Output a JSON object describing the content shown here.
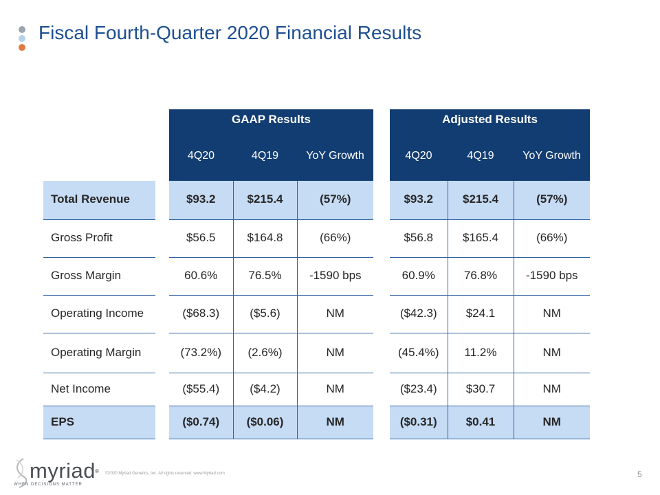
{
  "slide": {
    "title": "Fiscal Fourth-Quarter 2020 Financial Results",
    "page_number": "5",
    "copyright": "©2020 Myriad Genetics, Inc. All rights reserved. www.Myriad.com",
    "logo": {
      "name": "myriad",
      "registered": "®",
      "tagline": "WHEN DECISIONS MATTER"
    }
  },
  "colors": {
    "title": "#1d4f91",
    "header_bg": "#123d72",
    "highlight_bg": "#c6dbf4",
    "rule": "#2f62a4"
  },
  "rows": {
    "labels": [
      "Total Revenue",
      "Gross Profit",
      "Gross Margin",
      "Operating Income",
      "Operating Margin",
      "Net Income",
      "EPS"
    ]
  },
  "gaap": {
    "header": "GAAP Results",
    "columns": [
      "4Q20",
      "4Q19",
      "YoY Growth"
    ],
    "rows": [
      [
        "$93.2",
        "$215.4",
        "(57%)"
      ],
      [
        "$56.5",
        "$164.8",
        "(66%)"
      ],
      [
        "60.6%",
        "76.5%",
        "-1590 bps"
      ],
      [
        "($68.3)",
        "($5.6)",
        "NM"
      ],
      [
        "(73.2%)",
        "(2.6%)",
        "NM"
      ],
      [
        "($55.4)",
        "($4.2)",
        "NM"
      ],
      [
        "($0.74)",
        "($0.06)",
        "NM"
      ]
    ]
  },
  "adjusted": {
    "header": "Adjusted Results",
    "columns": [
      "4Q20",
      "4Q19",
      "YoY Growth"
    ],
    "rows": [
      [
        "$93.2",
        "$215.4",
        "(57%)"
      ],
      [
        "$56.8",
        "$165.4",
        "(66%)"
      ],
      [
        "60.9%",
        "76.8%",
        "-1590 bps"
      ],
      [
        "($42.3)",
        "$24.1",
        "NM"
      ],
      [
        "(45.4%)",
        "11.2%",
        "NM"
      ],
      [
        "($23.4)",
        "$30.7",
        "NM"
      ],
      [
        "($0.31)",
        "$0.41",
        "NM"
      ]
    ]
  }
}
